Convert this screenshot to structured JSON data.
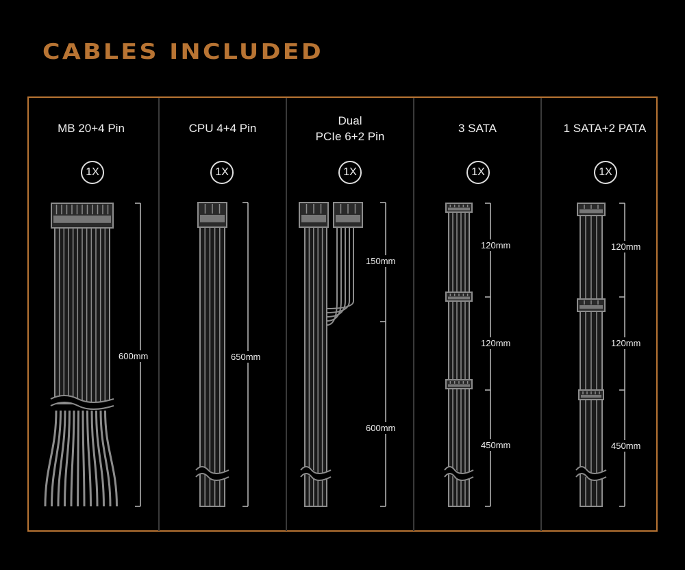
{
  "title": "CABLES INCLUDED",
  "accent_color": "#b87433",
  "cables": [
    {
      "name": "MB 20+4 Pin",
      "qty": "1X",
      "lengths": [
        "600mm"
      ]
    },
    {
      "name": "CPU 4+4 Pin",
      "qty": "1X",
      "lengths": [
        "650mm"
      ]
    },
    {
      "name_line1": "Dual",
      "name": "PCIe 6+2 Pin",
      "qty": "1X",
      "lengths": [
        "150mm",
        "600mm"
      ]
    },
    {
      "name": "3 SATA",
      "qty": "1X",
      "lengths": [
        "120mm",
        "120mm",
        "450mm"
      ]
    },
    {
      "name": "1 SATA+2 PATA",
      "qty": "1X",
      "lengths": [
        "120mm",
        "120mm",
        "450mm"
      ]
    }
  ]
}
